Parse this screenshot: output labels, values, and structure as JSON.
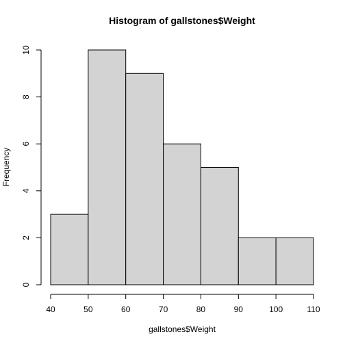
{
  "chart_data": {
    "type": "bar",
    "title": "Histogram of gallstones$Weight",
    "xlabel": "gallstones$Weight",
    "ylabel": "Frequency",
    "bins": [
      {
        "from": 40,
        "to": 50,
        "count": 3
      },
      {
        "from": 50,
        "to": 60,
        "count": 10
      },
      {
        "from": 60,
        "to": 70,
        "count": 9
      },
      {
        "from": 70,
        "to": 80,
        "count": 6
      },
      {
        "from": 80,
        "to": 90,
        "count": 5
      },
      {
        "from": 90,
        "to": 100,
        "count": 2
      },
      {
        "from": 100,
        "to": 110,
        "count": 2
      }
    ],
    "xlim": [
      40,
      110
    ],
    "ylim": [
      0,
      10
    ],
    "xticks": [
      40,
      50,
      60,
      70,
      80,
      90,
      100,
      110
    ],
    "yticks": [
      0,
      2,
      4,
      6,
      8,
      10
    ],
    "bar_fill": "#d3d3d3",
    "bar_stroke": "#000000",
    "grid": false,
    "legend": "none"
  }
}
